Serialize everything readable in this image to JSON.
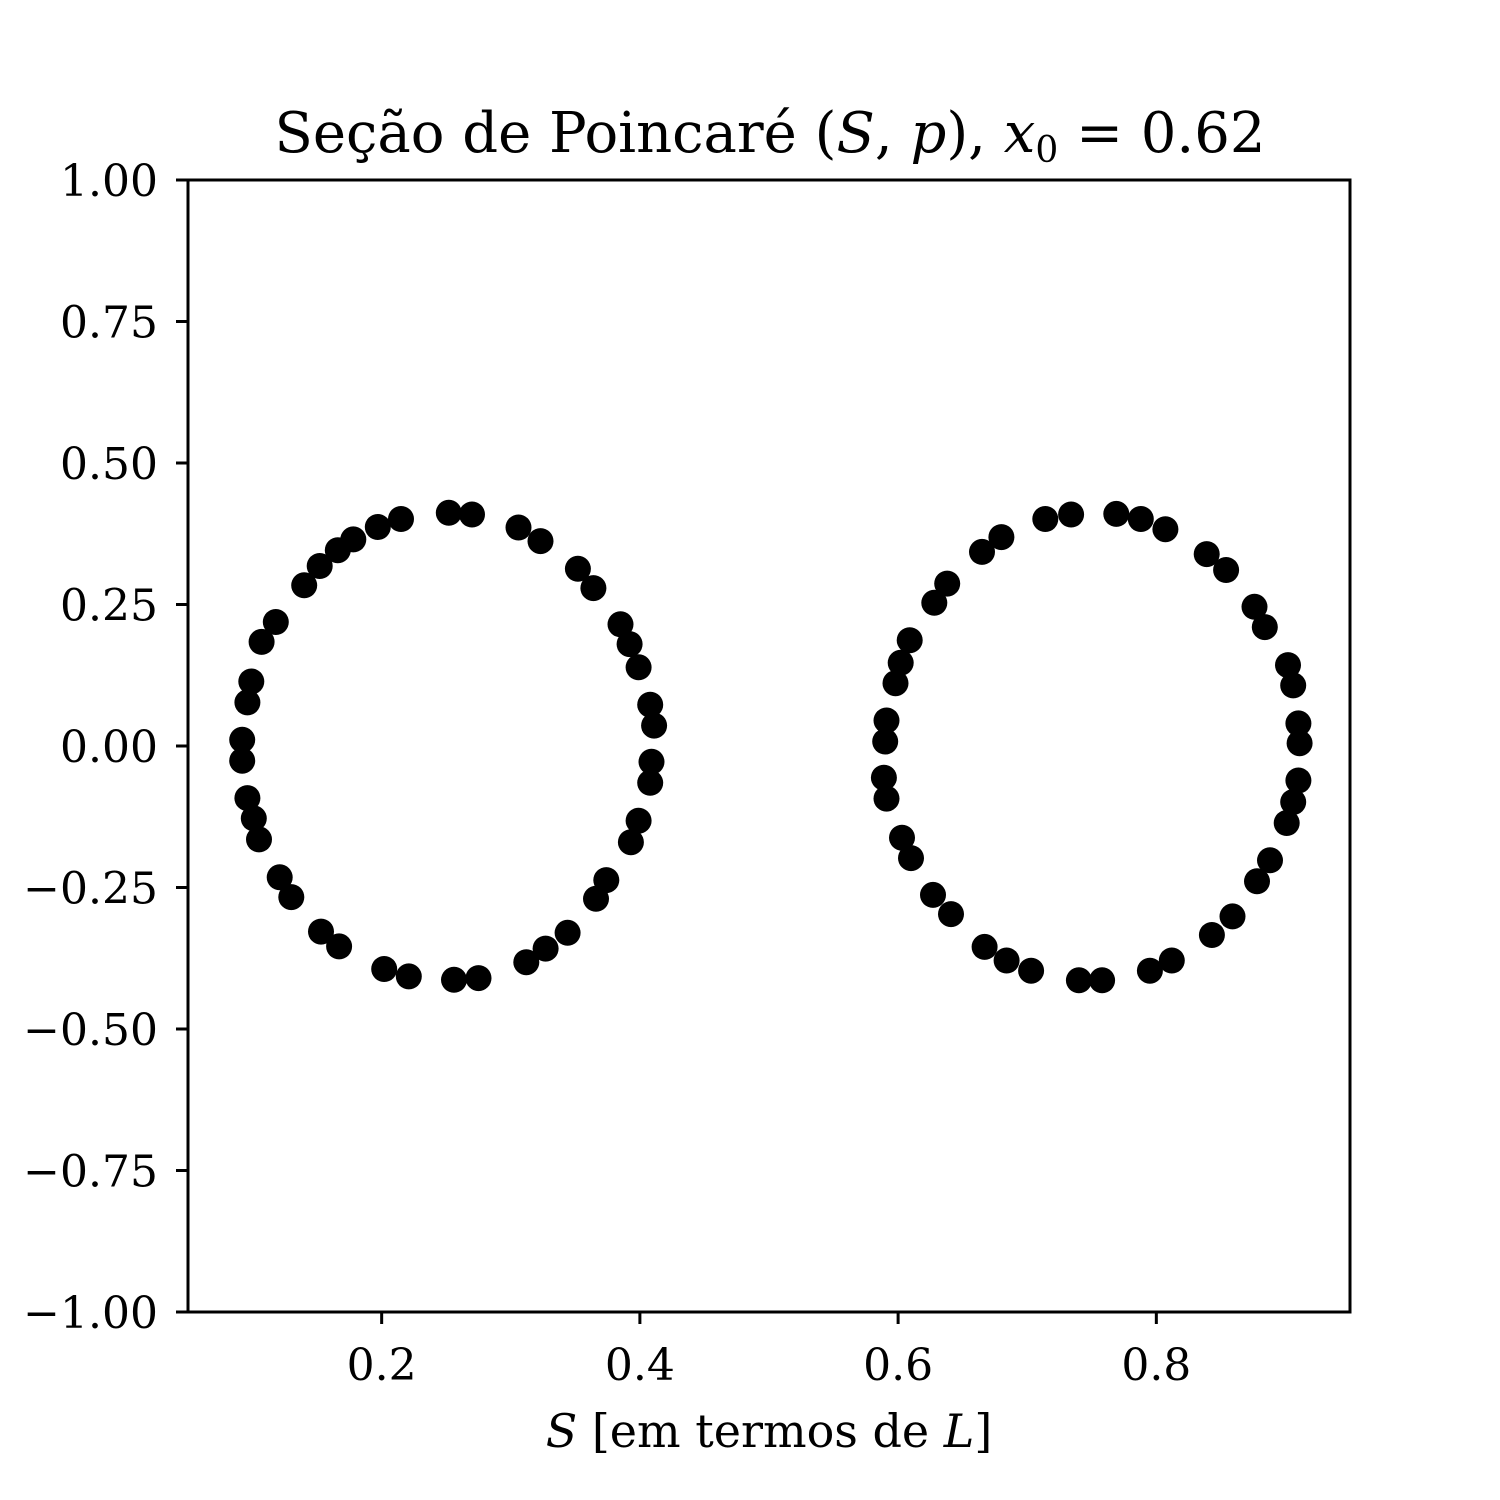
{
  "chart_data": {
    "type": "scatter",
    "title": {
      "prefix": "Seção de Poincaré (",
      "var1": "S",
      "comma": ", ",
      "var2": "p",
      "mid": "), ",
      "var3": "x",
      "sub": "0",
      "suffix": " = 0.62"
    },
    "xlabel": {
      "var": "S",
      "text": " [em termos de ",
      "var2": "L",
      "end": "]"
    },
    "ylabel": "",
    "xlim": [
      0.05,
      0.95
    ],
    "ylim": [
      -1.0,
      1.0
    ],
    "x_ticks": [
      0.2,
      0.4,
      0.6,
      0.8
    ],
    "x_tick_labels": [
      "0.2",
      "0.4",
      "0.6",
      "0.8"
    ],
    "y_ticks": [
      1.0,
      0.75,
      0.5,
      0.25,
      0.0,
      -0.25,
      -0.5,
      -0.75,
      -1.0
    ],
    "y_tick_labels": [
      "1.00",
      "0.75",
      "0.50",
      "0.25",
      "0.00",
      "−0.25",
      "−0.50",
      "−0.75",
      "−1.00"
    ],
    "grid": false,
    "marker_color": "#000000",
    "series": [
      {
        "points": [
          [
            0.252,
            0.412
          ],
          [
            0.27,
            0.409
          ],
          [
            0.306,
            0.386
          ],
          [
            0.323,
            0.362
          ],
          [
            0.352,
            0.313
          ],
          [
            0.364,
            0.279
          ],
          [
            0.385,
            0.215
          ],
          [
            0.392,
            0.18
          ],
          [
            0.399,
            0.139
          ],
          [
            0.408,
            0.073
          ],
          [
            0.411,
            0.036
          ],
          [
            0.409,
            -0.028
          ],
          [
            0.408,
            -0.065
          ],
          [
            0.399,
            -0.132
          ],
          [
            0.393,
            -0.17
          ],
          [
            0.374,
            -0.237
          ],
          [
            0.366,
            -0.27
          ],
          [
            0.344,
            -0.33
          ],
          [
            0.327,
            -0.358
          ],
          [
            0.312,
            -0.382
          ],
          [
            0.275,
            -0.41
          ],
          [
            0.256,
            -0.413
          ],
          [
            0.221,
            -0.407
          ],
          [
            0.202,
            -0.394
          ],
          [
            0.167,
            -0.354
          ],
          [
            0.153,
            -0.328
          ],
          [
            0.13,
            -0.267
          ],
          [
            0.121,
            -0.232
          ],
          [
            0.105,
            -0.165
          ],
          [
            0.101,
            -0.128
          ],
          [
            0.096,
            -0.092
          ],
          [
            0.092,
            -0.026
          ],
          [
            0.092,
            0.011
          ],
          [
            0.096,
            0.077
          ],
          [
            0.099,
            0.114
          ],
          [
            0.107,
            0.184
          ],
          [
            0.118,
            0.219
          ],
          [
            0.14,
            0.284
          ],
          [
            0.152,
            0.318
          ],
          [
            0.166,
            0.346
          ],
          [
            0.178,
            0.365
          ],
          [
            0.197,
            0.387
          ],
          [
            0.215,
            0.401
          ]
        ]
      },
      {
        "points": [
          [
            0.734,
            0.409
          ],
          [
            0.769,
            0.41
          ],
          [
            0.788,
            0.401
          ],
          [
            0.807,
            0.383
          ],
          [
            0.839,
            0.339
          ],
          [
            0.854,
            0.311
          ],
          [
            0.876,
            0.246
          ],
          [
            0.884,
            0.21
          ],
          [
            0.902,
            0.143
          ],
          [
            0.906,
            0.107
          ],
          [
            0.91,
            0.04
          ],
          [
            0.911,
            0.005
          ],
          [
            0.91,
            -0.061
          ],
          [
            0.906,
            -0.099
          ],
          [
            0.901,
            -0.136
          ],
          [
            0.888,
            -0.202
          ],
          [
            0.878,
            -0.239
          ],
          [
            0.859,
            -0.301
          ],
          [
            0.843,
            -0.334
          ],
          [
            0.812,
            -0.379
          ],
          [
            0.795,
            -0.397
          ],
          [
            0.758,
            -0.414
          ],
          [
            0.74,
            -0.414
          ],
          [
            0.703,
            -0.397
          ],
          [
            0.684,
            -0.379
          ],
          [
            0.667,
            -0.355
          ],
          [
            0.641,
            -0.297
          ],
          [
            0.627,
            -0.263
          ],
          [
            0.61,
            -0.198
          ],
          [
            0.603,
            -0.162
          ],
          [
            0.591,
            -0.093
          ],
          [
            0.589,
            -0.056
          ],
          [
            0.59,
            0.008
          ],
          [
            0.591,
            0.045
          ],
          [
            0.598,
            0.111
          ],
          [
            0.602,
            0.147
          ],
          [
            0.609,
            0.187
          ],
          [
            0.628,
            0.253
          ],
          [
            0.638,
            0.287
          ],
          [
            0.665,
            0.343
          ],
          [
            0.68,
            0.369
          ],
          [
            0.714,
            0.401
          ]
        ]
      }
    ]
  }
}
